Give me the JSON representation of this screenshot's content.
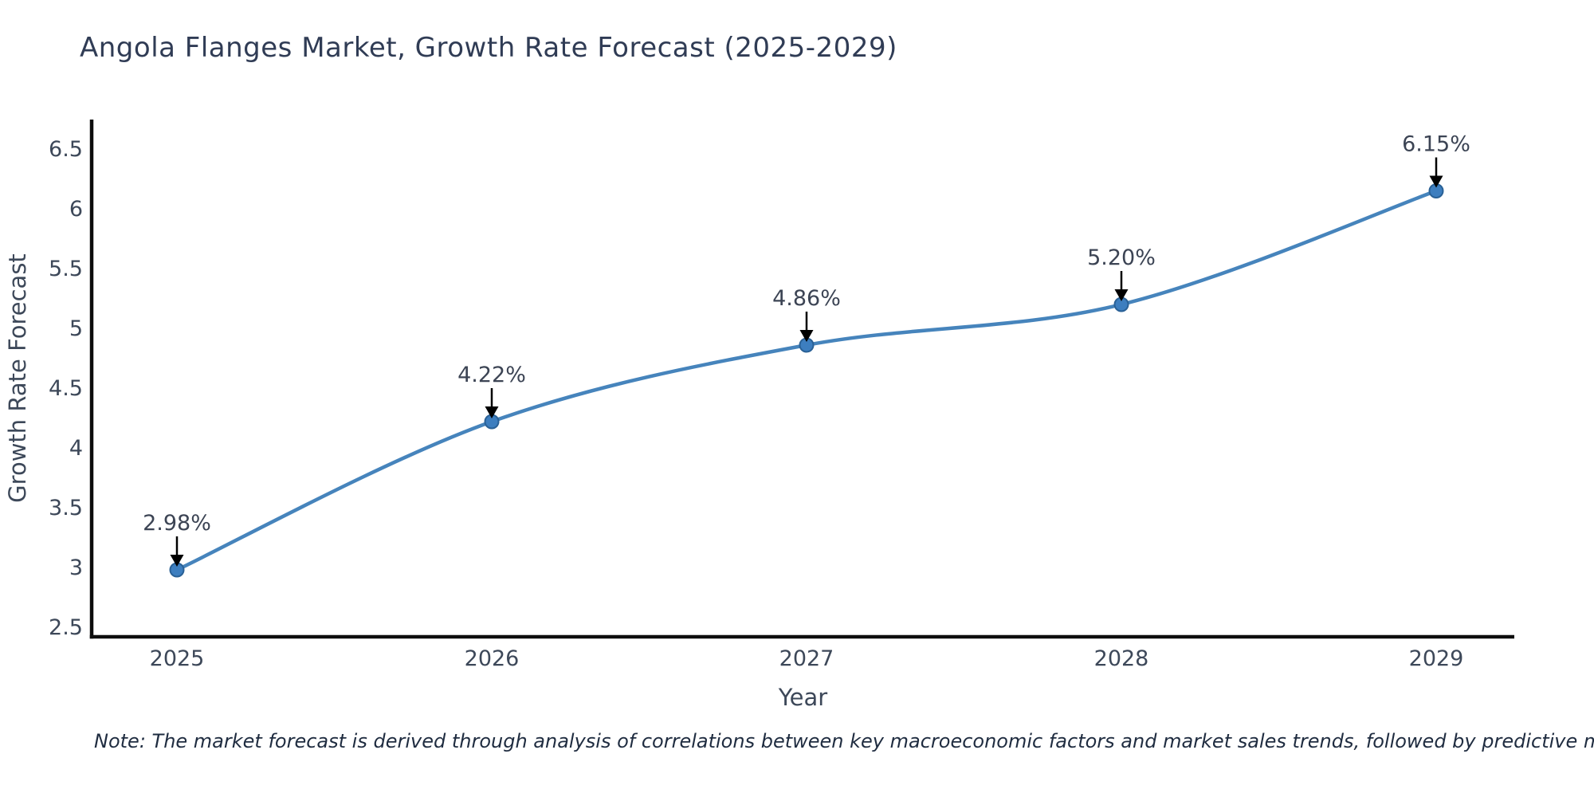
{
  "title": "Angola Flanges Market, Growth Rate Forecast (2025-2029)",
  "note": "Note: The market forecast is derived through analysis of correlations between key macroeconomic factors and market sales trends, followed by predictive modeling to project future sales",
  "chart_data": {
    "type": "line",
    "title": "Angola Flanges Market, Growth Rate Forecast (2025-2029)",
    "xlabel": "Year",
    "ylabel": "Growth Rate Forecast",
    "categories": [
      "2025",
      "2026",
      "2027",
      "2028",
      "2029"
    ],
    "values": [
      2.98,
      4.22,
      4.86,
      5.2,
      6.15
    ],
    "point_labels": [
      "2.98%",
      "4.22%",
      "4.86%",
      "5.20%",
      "6.15%"
    ],
    "y_ticks": [
      "2.5",
      "3",
      "3.5",
      "4",
      "4.5",
      "5",
      "5.5",
      "6",
      "6.5"
    ],
    "y_tick_values": [
      2.5,
      3,
      3.5,
      4,
      4.5,
      5,
      5.5,
      6,
      6.5
    ],
    "ylim": [
      2.42,
      6.75
    ],
    "grid": false,
    "legend": "none",
    "line_style": "smooth-spline",
    "annotation_style": "down-arrow"
  },
  "colors": {
    "line": "#4684bc",
    "marker_fill": "#3d7ebf",
    "marker_edge": "#2a6196",
    "axis": "#0d0d0d",
    "tick_text": "#3d4859",
    "axis_label_text": "#3d4859",
    "title_text": "#303c55",
    "annotation_text": "#3c4454",
    "arrow": "#000000",
    "note_text": "#1f2c40",
    "background": "#ffffff"
  }
}
